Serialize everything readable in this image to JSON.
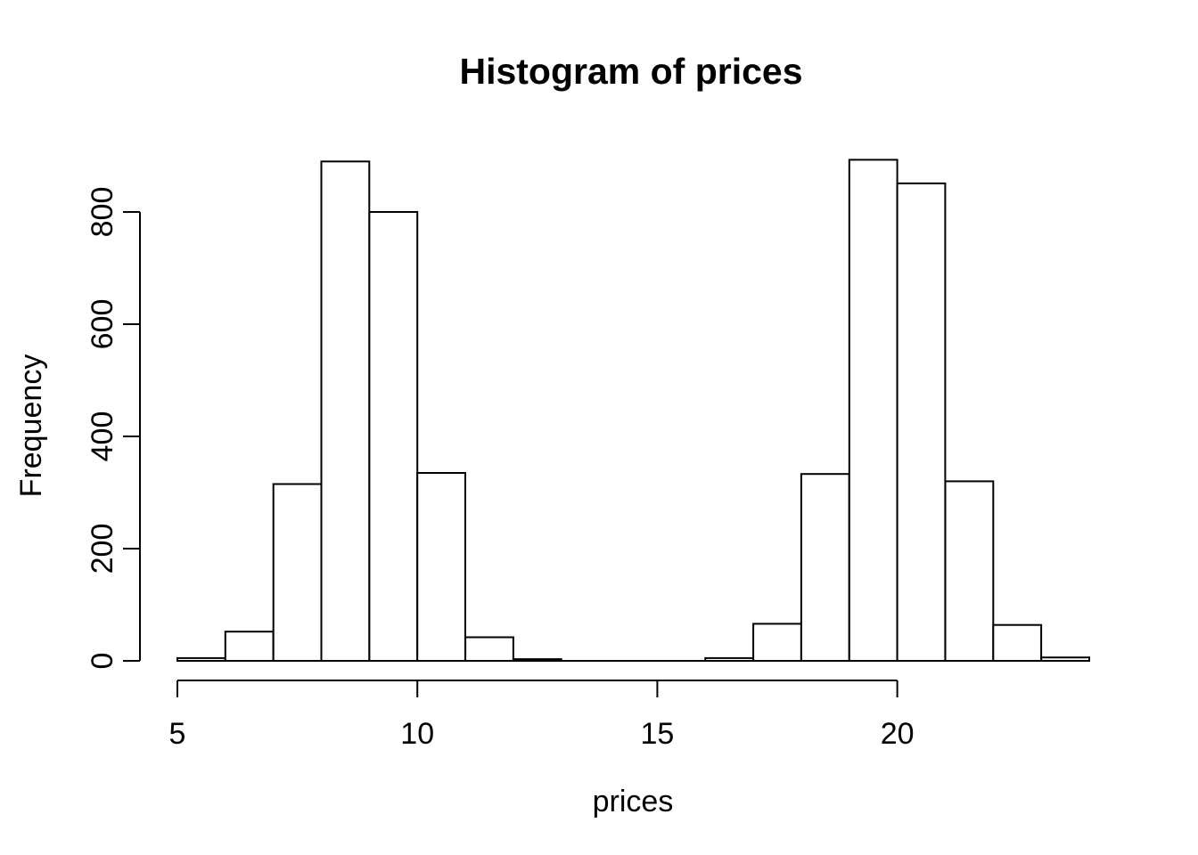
{
  "chart_data": {
    "type": "bar",
    "subtype": "histogram",
    "title": "Histogram of prices",
    "xlabel": "prices",
    "ylabel": "Frequency",
    "bin_breaks": [
      5,
      6,
      7,
      8,
      9,
      10,
      11,
      12,
      13,
      14,
      15,
      16,
      17,
      18,
      19,
      20,
      21,
      22,
      23,
      24
    ],
    "counts": [
      5,
      52,
      315,
      890,
      800,
      335,
      42,
      3,
      0,
      0,
      0,
      5,
      66,
      333,
      893,
      851,
      320,
      64,
      6
    ],
    "x_ticks": [
      5,
      10,
      15,
      20
    ],
    "y_ticks": [
      0,
      200,
      400,
      600,
      800
    ],
    "xlim": [
      5,
      24
    ],
    "ylim": [
      0,
      800
    ],
    "grid": false,
    "legend": null,
    "colors": {
      "background": "#ffffff",
      "bar_fill": "#ffffff",
      "bar_stroke": "#000000",
      "axis": "#000000",
      "text": "#000000"
    }
  }
}
